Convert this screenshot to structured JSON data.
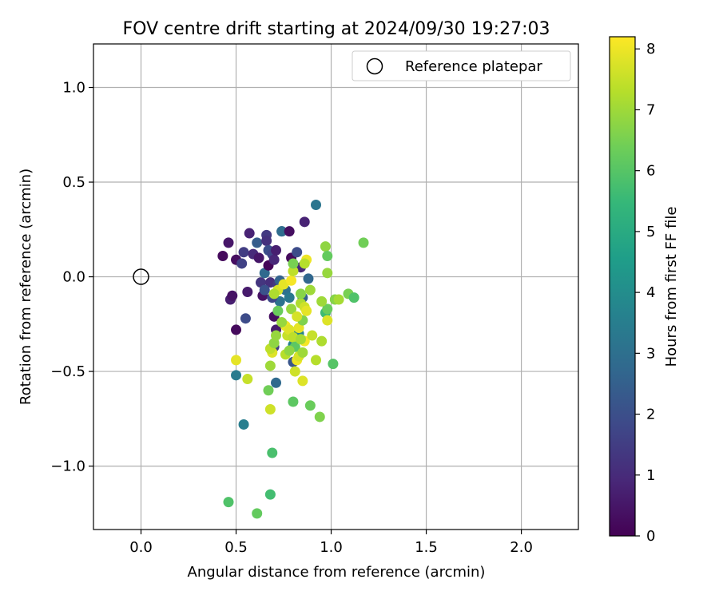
{
  "chart_data": {
    "type": "scatter",
    "title": "FOV centre drift starting at 2024/09/30 19:27:03",
    "xlabel": "Angular distance from reference (arcmin)",
    "ylabel": "Rotation from reference (arcmin)",
    "xlim": [
      -0.25,
      2.3
    ],
    "ylim": [
      -1.335,
      1.23
    ],
    "xticks": [
      0.0,
      0.5,
      1.0,
      1.5,
      2.0
    ],
    "xtick_labels": [
      "0.0",
      "0.5",
      "1.0",
      "1.5",
      "2.0"
    ],
    "yticks": [
      -1.0,
      -0.5,
      0.0,
      0.5,
      1.0
    ],
    "ytick_labels": [
      "−1.0",
      "−0.5",
      "0.0",
      "0.5",
      "1.0"
    ],
    "grid": true,
    "legend": {
      "placement": "upper-right",
      "entries": [
        "Reference platepar"
      ]
    },
    "reference_point": {
      "name": "Reference platepar",
      "x": 0.0,
      "y": 0.0,
      "marker": "open-circle"
    },
    "colorbar": {
      "label": "Hours from first FF file",
      "colormap": "viridis",
      "range": [
        0,
        8.2
      ],
      "ticks": [
        0,
        1,
        2,
        3,
        4,
        5,
        6,
        7,
        8
      ],
      "tick_labels": [
        "0",
        "1",
        "2",
        "3",
        "4",
        "5",
        "6",
        "7",
        "8"
      ],
      "stops": [
        "#440154",
        "#482878",
        "#3e4989",
        "#31688e",
        "#26828e",
        "#1f9e89",
        "#35b779",
        "#6ece58",
        "#b5de2b",
        "#fde725"
      ]
    },
    "points": [
      {
        "x": 0.43,
        "y": 0.11,
        "c": 0.2
      },
      {
        "x": 0.46,
        "y": 0.18,
        "c": 0.5
      },
      {
        "x": 0.47,
        "y": -0.12,
        "c": 0.7
      },
      {
        "x": 0.48,
        "y": -0.1,
        "c": 0.4
      },
      {
        "x": 0.5,
        "y": 0.09,
        "c": 0.3
      },
      {
        "x": 0.5,
        "y": -0.28,
        "c": 0.2
      },
      {
        "x": 0.53,
        "y": 0.07,
        "c": 1.6
      },
      {
        "x": 0.54,
        "y": 0.13,
        "c": 1.5
      },
      {
        "x": 0.55,
        "y": -0.22,
        "c": 1.9
      },
      {
        "x": 0.56,
        "y": -0.08,
        "c": 0.6
      },
      {
        "x": 0.57,
        "y": 0.23,
        "c": 0.8
      },
      {
        "x": 0.59,
        "y": 0.12,
        "c": 1.0
      },
      {
        "x": 0.61,
        "y": 0.18,
        "c": 2.4
      },
      {
        "x": 0.62,
        "y": 0.1,
        "c": 0.5
      },
      {
        "x": 0.63,
        "y": -0.03,
        "c": 1.3
      },
      {
        "x": 0.65,
        "y": 0.02,
        "c": 2.8
      },
      {
        "x": 0.66,
        "y": 0.22,
        "c": 1.4
      },
      {
        "x": 0.66,
        "y": 0.19,
        "c": 1.2
      },
      {
        "x": 0.67,
        "y": 0.14,
        "c": 2.0
      },
      {
        "x": 0.67,
        "y": 0.06,
        "c": 0.1
      },
      {
        "x": 0.68,
        "y": -0.03,
        "c": 1.1
      },
      {
        "x": 0.69,
        "y": 0.12,
        "c": 1.7
      },
      {
        "x": 0.7,
        "y": 0.09,
        "c": 0.9
      },
      {
        "x": 0.7,
        "y": -0.21,
        "c": 0.3
      },
      {
        "x": 0.71,
        "y": -0.28,
        "c": 0.6
      },
      {
        "x": 0.71,
        "y": 0.14,
        "c": 0.7
      },
      {
        "x": 0.72,
        "y": -0.04,
        "c": 1.4
      },
      {
        "x": 0.73,
        "y": -0.13,
        "c": 3.1
      },
      {
        "x": 0.73,
        "y": -0.02,
        "c": 2.6
      },
      {
        "x": 0.74,
        "y": 0.24,
        "c": 2.3
      },
      {
        "x": 0.74,
        "y": 0.24,
        "c": 2.9
      },
      {
        "x": 0.64,
        "y": -0.1,
        "c": 0.4
      },
      {
        "x": 0.69,
        "y": -0.11,
        "c": 1.8
      },
      {
        "x": 0.65,
        "y": -0.07,
        "c": 2.1
      },
      {
        "x": 0.78,
        "y": 0.24,
        "c": 0.3
      },
      {
        "x": 0.79,
        "y": 0.1,
        "c": 0.2
      },
      {
        "x": 0.82,
        "y": 0.13,
        "c": 1.9
      },
      {
        "x": 0.84,
        "y": 0.05,
        "c": 1.0
      },
      {
        "x": 0.86,
        "y": 0.29,
        "c": 0.8
      },
      {
        "x": 0.88,
        "y": -0.01,
        "c": 2.7
      },
      {
        "x": 0.92,
        "y": 0.38,
        "c": 3.2
      },
      {
        "x": 0.7,
        "y": -0.37,
        "c": 1.5
      },
      {
        "x": 0.8,
        "y": -0.45,
        "c": 2.2
      },
      {
        "x": 0.71,
        "y": -0.56,
        "c": 2.8
      },
      {
        "x": 0.5,
        "y": -0.52,
        "c": 3.4
      },
      {
        "x": 0.54,
        "y": -0.78,
        "c": 3.5
      },
      {
        "x": 0.85,
        "y": -0.11,
        "c": 2.5
      },
      {
        "x": 0.76,
        "y": -0.07,
        "c": 3.0
      },
      {
        "x": 0.78,
        "y": -0.11,
        "c": 3.3
      },
      {
        "x": 0.8,
        "y": -0.36,
        "c": 3.6
      },
      {
        "x": 0.83,
        "y": -0.3,
        "c": 3.7
      },
      {
        "x": 0.97,
        "y": 0.16,
        "c": 6.8
      },
      {
        "x": 0.98,
        "y": 0.11,
        "c": 6.2
      },
      {
        "x": 0.98,
        "y": 0.02,
        "c": 6.9
      },
      {
        "x": 0.97,
        "y": -0.19,
        "c": 5.6
      },
      {
        "x": 0.98,
        "y": -0.17,
        "c": 6.3
      },
      {
        "x": 0.95,
        "y": -0.13,
        "c": 7.0
      },
      {
        "x": 1.02,
        "y": -0.12,
        "c": 6.7
      },
      {
        "x": 1.04,
        "y": -0.12,
        "c": 7.1
      },
      {
        "x": 1.09,
        "y": -0.09,
        "c": 6.5
      },
      {
        "x": 1.12,
        "y": -0.11,
        "c": 5.9
      },
      {
        "x": 1.17,
        "y": 0.18,
        "c": 6.4
      },
      {
        "x": 0.95,
        "y": -0.34,
        "c": 7.2
      },
      {
        "x": 0.92,
        "y": -0.44,
        "c": 7.3
      },
      {
        "x": 1.01,
        "y": -0.46,
        "c": 6.0
      },
      {
        "x": 0.89,
        "y": -0.68,
        "c": 6.3
      },
      {
        "x": 0.94,
        "y": -0.74,
        "c": 6.6
      },
      {
        "x": 0.8,
        "y": -0.66,
        "c": 6.1
      },
      {
        "x": 0.67,
        "y": -0.6,
        "c": 6.4
      },
      {
        "x": 0.68,
        "y": -0.7,
        "c": 7.6
      },
      {
        "x": 0.56,
        "y": -0.54,
        "c": 7.5
      },
      {
        "x": 0.5,
        "y": -0.44,
        "c": 7.9
      },
      {
        "x": 0.69,
        "y": -0.93,
        "c": 5.8
      },
      {
        "x": 0.68,
        "y": -1.15,
        "c": 5.7
      },
      {
        "x": 0.46,
        "y": -1.19,
        "c": 5.9
      },
      {
        "x": 0.61,
        "y": -1.25,
        "c": 6.2
      },
      {
        "x": 0.68,
        "y": -0.47,
        "c": 7.0
      },
      {
        "x": 0.69,
        "y": -0.4,
        "c": 7.8
      },
      {
        "x": 0.68,
        "y": -0.38,
        "c": 7.4
      },
      {
        "x": 0.7,
        "y": -0.35,
        "c": 6.8
      },
      {
        "x": 0.71,
        "y": -0.31,
        "c": 6.9
      },
      {
        "x": 0.72,
        "y": -0.07,
        "c": 7.7
      },
      {
        "x": 0.7,
        "y": -0.09,
        "c": 7.2
      },
      {
        "x": 0.75,
        "y": -0.04,
        "c": 7.9
      },
      {
        "x": 0.76,
        "y": -0.26,
        "c": 8.0
      },
      {
        "x": 0.77,
        "y": -0.31,
        "c": 7.5
      },
      {
        "x": 0.76,
        "y": -0.41,
        "c": 7.3
      },
      {
        "x": 0.78,
        "y": -0.28,
        "c": 7.8
      },
      {
        "x": 0.79,
        "y": -0.17,
        "c": 6.9
      },
      {
        "x": 0.79,
        "y": -0.02,
        "c": 8.1
      },
      {
        "x": 0.8,
        "y": 0.03,
        "c": 7.4
      },
      {
        "x": 0.8,
        "y": 0.07,
        "c": 6.5
      },
      {
        "x": 0.81,
        "y": -0.5,
        "c": 7.6
      },
      {
        "x": 0.82,
        "y": -0.44,
        "c": 8.0
      },
      {
        "x": 0.83,
        "y": -0.42,
        "c": 7.7
      },
      {
        "x": 0.83,
        "y": -0.27,
        "c": 7.9
      },
      {
        "x": 0.84,
        "y": -0.14,
        "c": 7.2
      },
      {
        "x": 0.84,
        "y": -0.09,
        "c": 6.7
      },
      {
        "x": 0.85,
        "y": -0.23,
        "c": 6.6
      },
      {
        "x": 0.85,
        "y": -0.55,
        "c": 7.8
      },
      {
        "x": 0.86,
        "y": -0.34,
        "c": 8.1
      },
      {
        "x": 0.86,
        "y": -0.16,
        "c": 7.6
      },
      {
        "x": 0.87,
        "y": -0.18,
        "c": 7.9
      },
      {
        "x": 0.87,
        "y": 0.09,
        "c": 8.0
      },
      {
        "x": 0.86,
        "y": 0.07,
        "c": 7.3
      },
      {
        "x": 0.89,
        "y": -0.07,
        "c": 7.0
      },
      {
        "x": 0.9,
        "y": -0.31,
        "c": 7.5
      },
      {
        "x": 0.98,
        "y": -0.23,
        "c": 7.8
      },
      {
        "x": 0.74,
        "y": -0.24,
        "c": 6.9
      },
      {
        "x": 0.72,
        "y": -0.18,
        "c": 6.3
      },
      {
        "x": 0.8,
        "y": -0.32,
        "c": 7.4
      },
      {
        "x": 0.81,
        "y": -0.37,
        "c": 6.1
      },
      {
        "x": 0.84,
        "y": -0.33,
        "c": 7.1
      },
      {
        "x": 0.82,
        "y": -0.21,
        "c": 7.7
      },
      {
        "x": 0.85,
        "y": -0.4,
        "c": 7.0
      },
      {
        "x": 0.78,
        "y": -0.39,
        "c": 6.8
      }
    ]
  }
}
